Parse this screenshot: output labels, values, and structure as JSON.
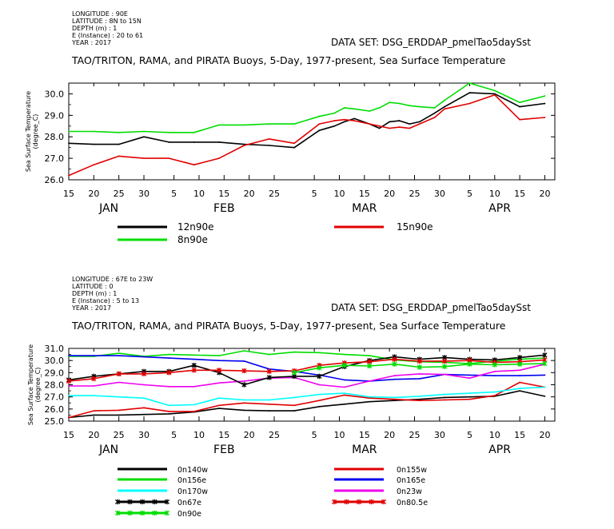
{
  "colors": {
    "black": "#000000",
    "red": "#e00000",
    "green": "#00dd00",
    "cyan": "#00ffff",
    "blue": "#0000ee",
    "magenta": "#ee00ee"
  },
  "chart_data": [
    {
      "type": "line",
      "meta_lines": [
        "LONGITUDE : 90E",
        "LATITUDE : 8N to 15N",
        "DEPTH (m) : 1",
        "E (Instance) : 20 to 61",
        "YEAR : 2017"
      ],
      "dataset": "DATA SET: DSG_ERDDAP_pmelTao5daySst",
      "title": "TAO/TRITON, RAMA, and PIRATA Buoys, 5-Day, 1977-present, Sea Surface Temperature",
      "ylabel": "Sea Surface Temperature (degree_C)",
      "ylim": [
        26.0,
        30.5
      ],
      "yticks": [
        "26.0",
        "27.0",
        "28.0",
        "29.0",
        "30.0"
      ],
      "xlim": [
        15,
        112
      ],
      "xticks": [
        {
          "x": 15,
          "t": "15"
        },
        {
          "x": 20,
          "t": "20"
        },
        {
          "x": 25,
          "t": "25"
        },
        {
          "x": 30,
          "t": "30"
        },
        {
          "x": 36,
          "t": "5"
        },
        {
          "x": 41,
          "t": "10"
        },
        {
          "x": 46,
          "t": "15"
        },
        {
          "x": 51,
          "t": "20"
        },
        {
          "x": 56,
          "t": "25"
        },
        {
          "x": 64,
          "t": "5"
        },
        {
          "x": 69,
          "t": "10"
        },
        {
          "x": 74,
          "t": "15"
        },
        {
          "x": 79,
          "t": "20"
        },
        {
          "x": 84,
          "t": "25"
        },
        {
          "x": 89,
          "t": "30"
        },
        {
          "x": 95,
          "t": "5"
        },
        {
          "x": 100,
          "t": "10"
        },
        {
          "x": 105,
          "t": "15"
        },
        {
          "x": 110,
          "t": "20"
        }
      ],
      "months": [
        {
          "x": 23,
          "t": "JAN"
        },
        {
          "x": 46,
          "t": "FEB"
        },
        {
          "x": 74,
          "t": "MAR"
        },
        {
          "x": 101,
          "t": "APR"
        }
      ],
      "grid": false,
      "series": [
        {
          "name": "12n90e",
          "color": "#000000",
          "marker": false,
          "x": [
            15,
            20,
            25,
            30,
            35,
            40,
            45,
            50,
            55,
            60,
            65,
            68,
            70,
            72,
            75,
            77,
            79,
            81,
            83,
            85,
            88,
            90,
            95,
            100,
            105,
            110
          ],
          "y": [
            27.7,
            27.65,
            27.65,
            28.0,
            27.75,
            27.75,
            27.75,
            27.65,
            27.6,
            27.5,
            28.3,
            28.5,
            28.7,
            28.85,
            28.6,
            28.4,
            28.7,
            28.75,
            28.6,
            28.7,
            29.1,
            29.4,
            30.05,
            30.0,
            29.4,
            29.55
          ]
        },
        {
          "name": "15n90e",
          "color": "#e00000",
          "marker": false,
          "x": [
            15,
            20,
            25,
            30,
            35,
            40,
            45,
            50,
            55,
            60,
            65,
            68,
            70,
            72,
            75,
            77,
            79,
            81,
            83,
            85,
            88,
            90,
            95,
            100,
            105,
            110
          ],
          "y": [
            26.2,
            26.7,
            27.1,
            27.0,
            27.0,
            26.7,
            27.0,
            27.6,
            27.9,
            27.7,
            28.6,
            28.75,
            28.8,
            28.75,
            28.6,
            28.5,
            28.4,
            28.45,
            28.4,
            28.6,
            28.9,
            29.3,
            29.55,
            29.95,
            28.8,
            28.9
          ]
        },
        {
          "name": "8n90e",
          "color": "#00dd00",
          "marker": false,
          "x": [
            15,
            20,
            25,
            30,
            35,
            40,
            45,
            50,
            55,
            60,
            65,
            68,
            70,
            72,
            75,
            77,
            79,
            81,
            83,
            85,
            88,
            90,
            95,
            100,
            105,
            110
          ],
          "y": [
            28.25,
            28.25,
            28.2,
            28.25,
            28.2,
            28.2,
            28.55,
            28.55,
            28.6,
            28.6,
            28.95,
            29.1,
            29.35,
            29.3,
            29.2,
            29.35,
            29.6,
            29.55,
            29.45,
            29.4,
            29.35,
            29.7,
            30.5,
            30.15,
            29.6,
            29.9
          ]
        }
      ],
      "legend": [
        {
          "label": "12n90e",
          "color": "#000000"
        },
        {
          "label": "15n90e",
          "color": "#e00000"
        },
        {
          "label": "8n90e",
          "color": "#00dd00"
        }
      ]
    },
    {
      "type": "line",
      "meta_lines": [
        "LONGITUDE : 67E to 23W",
        "LATITUDE : 0",
        "DEPTH (m) : 1",
        "E (Instance) : 5 to 13",
        "YEAR : 2017"
      ],
      "dataset": "DATA SET: DSG_ERDDAP_pmelTao5daySst",
      "title": "TAO/TRITON, RAMA, and PIRATA Buoys, 5-Day, 1977-present, Sea Surface Temperature",
      "ylabel": "Sea Surface Temperature (degree_C)",
      "ylim": [
        25.0,
        31.0
      ],
      "yticks": [
        "25.0",
        "26.0",
        "27.0",
        "28.0",
        "29.0",
        "30.0",
        "31.0"
      ],
      "xlim": [
        15,
        112
      ],
      "xticks": [
        {
          "x": 15,
          "t": "15"
        },
        {
          "x": 20,
          "t": "20"
        },
        {
          "x": 25,
          "t": "25"
        },
        {
          "x": 30,
          "t": "30"
        },
        {
          "x": 36,
          "t": "5"
        },
        {
          "x": 41,
          "t": "10"
        },
        {
          "x": 46,
          "t": "15"
        },
        {
          "x": 51,
          "t": "20"
        },
        {
          "x": 56,
          "t": "25"
        },
        {
          "x": 64,
          "t": "5"
        },
        {
          "x": 69,
          "t": "10"
        },
        {
          "x": 74,
          "t": "15"
        },
        {
          "x": 79,
          "t": "20"
        },
        {
          "x": 84,
          "t": "25"
        },
        {
          "x": 89,
          "t": "30"
        },
        {
          "x": 95,
          "t": "5"
        },
        {
          "x": 100,
          "t": "10"
        },
        {
          "x": 105,
          "t": "15"
        },
        {
          "x": 110,
          "t": "20"
        }
      ],
      "months": [
        {
          "x": 23,
          "t": "JAN"
        },
        {
          "x": 46,
          "t": "FEB"
        },
        {
          "x": 74,
          "t": "MAR"
        },
        {
          "x": 101,
          "t": "APR"
        }
      ],
      "grid": false,
      "series": [
        {
          "name": "0n140w",
          "color": "#000000",
          "marker": false,
          "x": [
            15,
            20,
            25,
            30,
            35,
            40,
            45,
            50,
            55,
            60,
            65,
            70,
            75,
            80,
            85,
            90,
            95,
            100,
            105,
            110
          ],
          "y": [
            25.3,
            25.5,
            25.5,
            25.55,
            25.6,
            25.75,
            26.05,
            25.9,
            25.85,
            25.85,
            26.2,
            26.4,
            26.6,
            26.7,
            26.8,
            26.95,
            27.0,
            27.05,
            27.5,
            27.05
          ]
        },
        {
          "name": "0n155w",
          "color": "#e00000",
          "marker": false,
          "x": [
            15,
            20,
            25,
            30,
            35,
            40,
            45,
            50,
            55,
            60,
            65,
            70,
            75,
            80,
            85,
            90,
            95,
            100,
            105,
            110
          ],
          "y": [
            25.3,
            25.85,
            25.9,
            26.1,
            25.8,
            25.8,
            26.3,
            26.5,
            26.4,
            26.3,
            26.7,
            27.15,
            26.9,
            26.8,
            26.7,
            26.75,
            26.8,
            27.1,
            28.2,
            27.8
          ]
        },
        {
          "name": "0n156e",
          "color": "#00dd00",
          "marker": false,
          "x": [
            15,
            20,
            25,
            30,
            35,
            40,
            45,
            50,
            55,
            60,
            65,
            70,
            75,
            80,
            85,
            90,
            95,
            100,
            105,
            110
          ],
          "y": [
            30.35,
            30.35,
            30.6,
            30.35,
            30.5,
            30.45,
            30.4,
            30.8,
            30.5,
            30.7,
            30.65,
            30.5,
            30.4,
            30.05,
            29.9,
            29.85,
            29.75,
            29.95,
            30.1,
            30.2
          ]
        },
        {
          "name": "0n165e",
          "color": "#0000ee",
          "marker": false,
          "x": [
            15,
            20,
            25,
            30,
            35,
            40,
            45,
            50,
            55,
            60,
            65,
            70,
            75,
            80,
            85,
            90,
            95,
            100,
            105,
            110
          ],
          "y": [
            30.4,
            30.4,
            30.4,
            30.3,
            30.2,
            30.1,
            30.0,
            29.95,
            29.3,
            29.1,
            28.8,
            28.4,
            28.3,
            28.45,
            28.5,
            28.85,
            28.8,
            28.75,
            28.75,
            28.8
          ]
        },
        {
          "name": "0n170w",
          "color": "#00ffff",
          "marker": false,
          "x": [
            15,
            20,
            25,
            30,
            35,
            40,
            45,
            50,
            55,
            60,
            65,
            70,
            75,
            80,
            85,
            90,
            95,
            100,
            105,
            110
          ],
          "y": [
            27.1,
            27.1,
            27.0,
            26.9,
            26.3,
            26.35,
            26.9,
            26.75,
            26.75,
            26.95,
            27.2,
            27.3,
            27.0,
            26.95,
            27.05,
            27.2,
            27.3,
            27.4,
            27.7,
            27.8
          ]
        },
        {
          "name": "0n23w",
          "color": "#ee00ee",
          "marker": false,
          "x": [
            15,
            20,
            25,
            30,
            35,
            40,
            45,
            50,
            55,
            60,
            65,
            70,
            75,
            80,
            85,
            90,
            95,
            100,
            105,
            110
          ],
          "y": [
            27.9,
            27.9,
            28.2,
            28.0,
            27.85,
            27.85,
            28.15,
            28.3,
            28.55,
            28.6,
            28.0,
            27.8,
            28.3,
            28.75,
            28.9,
            28.85,
            28.55,
            29.1,
            29.2,
            29.7
          ]
        },
        {
          "name": "0n67e",
          "color": "#000000",
          "marker": true,
          "x": [
            15,
            20,
            25,
            30,
            35,
            40,
            45,
            50,
            55,
            60,
            65,
            70,
            75,
            80,
            85,
            90,
            95,
            100,
            105,
            110
          ],
          "y": [
            28.4,
            28.7,
            28.9,
            29.1,
            29.1,
            29.6,
            29.0,
            28.0,
            28.6,
            28.7,
            28.7,
            29.5,
            30.0,
            30.3,
            30.1,
            30.25,
            30.1,
            30.05,
            30.25,
            30.45
          ]
        },
        {
          "name": "0n80.5e",
          "color": "#e00000",
          "marker": true,
          "x": [
            15,
            20,
            25,
            30,
            35,
            40,
            45,
            50,
            55,
            60,
            65,
            70,
            75,
            80,
            85,
            90,
            95,
            100,
            105,
            110
          ],
          "y": [
            28.3,
            28.5,
            28.9,
            28.9,
            29.0,
            29.2,
            29.2,
            29.15,
            29.1,
            29.15,
            29.6,
            29.8,
            29.9,
            30.1,
            29.95,
            29.95,
            30.0,
            29.85,
            29.9,
            30.05
          ]
        },
        {
          "name": "0n90e",
          "color": "#00dd00",
          "marker": true,
          "x": [
            15,
            20,
            25,
            30,
            35,
            40,
            45,
            50,
            55,
            60,
            65,
            70,
            75,
            80,
            85,
            90,
            95,
            100,
            105,
            110
          ],
          "y": [
            null,
            null,
            null,
            null,
            null,
            null,
            null,
            null,
            null,
            29.0,
            29.4,
            29.6,
            29.55,
            29.7,
            29.45,
            29.5,
            29.7,
            29.65,
            29.7,
            29.75
          ]
        }
      ],
      "legend": [
        {
          "label": "0n140w",
          "color": "#000000",
          "marker": false
        },
        {
          "label": "0n155w",
          "color": "#e00000",
          "marker": false
        },
        {
          "label": "0n156e",
          "color": "#00dd00",
          "marker": false
        },
        {
          "label": "0n165e",
          "color": "#0000ee",
          "marker": false
        },
        {
          "label": "0n170w",
          "color": "#00ffff",
          "marker": false
        },
        {
          "label": "0n23w",
          "color": "#ee00ee",
          "marker": false
        },
        {
          "label": "0n67e",
          "color": "#000000",
          "marker": true
        },
        {
          "label": "0n80.5e",
          "color": "#e00000",
          "marker": true
        },
        {
          "label": "0n90e",
          "color": "#00dd00",
          "marker": true
        }
      ]
    }
  ]
}
